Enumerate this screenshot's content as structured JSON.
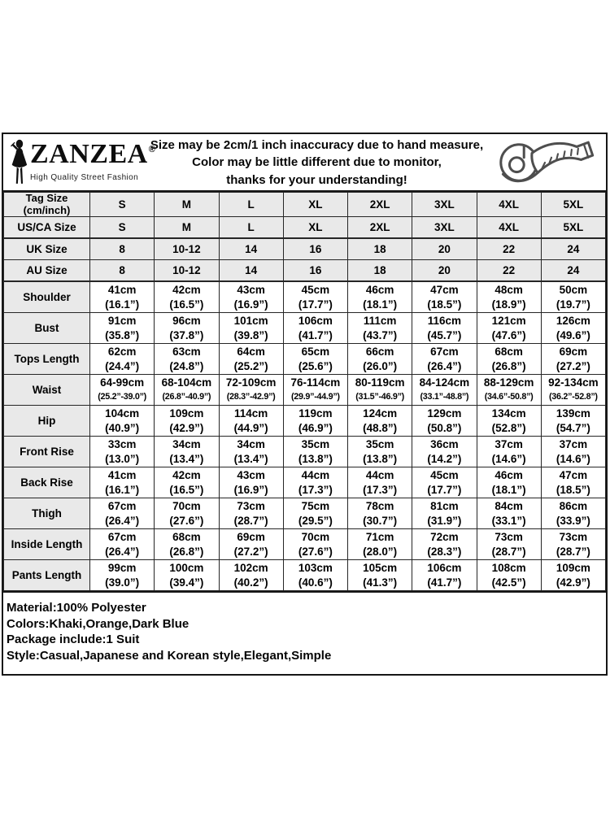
{
  "header": {
    "logo_icon": "woman-silhouette-icon",
    "brand_name": "ZANZEA",
    "registered_mark": "®",
    "brand_tagline": "High Quality Street Fashion",
    "disclaimer_line1": "Size may be 2cm/1 inch inaccuracy due to hand measure,",
    "disclaimer_line2": "Color may be little different due to monitor,",
    "disclaimer_line3": "thanks for your understanding!",
    "tape_icon": "measuring-tape-icon"
  },
  "table": {
    "size_rows": [
      {
        "label_line1": "Tag Size",
        "label_line2": "(cm/inch)",
        "values": [
          "S",
          "M",
          "L",
          "XL",
          "2XL",
          "3XL",
          "4XL",
          "5XL"
        ]
      },
      {
        "label_line1": "US/CA Size",
        "values": [
          "S",
          "M",
          "L",
          "XL",
          "2XL",
          "3XL",
          "4XL",
          "5XL"
        ]
      },
      {
        "label_line1": "UK Size",
        "values": [
          "8",
          "10-12",
          "14",
          "16",
          "18",
          "20",
          "22",
          "24"
        ]
      },
      {
        "label_line1": "AU Size",
        "values": [
          "8",
          "10-12",
          "14",
          "16",
          "18",
          "20",
          "22",
          "24"
        ]
      }
    ],
    "measurement_rows": [
      {
        "label": "Shoulder",
        "cells": [
          [
            "41cm",
            "(16.1”)"
          ],
          [
            "42cm",
            "(16.5”)"
          ],
          [
            "43cm",
            "(16.9”)"
          ],
          [
            "45cm",
            "(17.7”)"
          ],
          [
            "46cm",
            "(18.1”)"
          ],
          [
            "47cm",
            "(18.5”)"
          ],
          [
            "48cm",
            "(18.9”)"
          ],
          [
            "50cm",
            "(19.7”)"
          ]
        ]
      },
      {
        "label": "Bust",
        "cells": [
          [
            "91cm",
            "(35.8”)"
          ],
          [
            "96cm",
            "(37.8”)"
          ],
          [
            "101cm",
            "(39.8”)"
          ],
          [
            "106cm",
            "(41.7”)"
          ],
          [
            "111cm",
            "(43.7”)"
          ],
          [
            "116cm",
            "(45.7”)"
          ],
          [
            "121cm",
            "(47.6”)"
          ],
          [
            "126cm",
            "(49.6”)"
          ]
        ]
      },
      {
        "label": "Tops Length",
        "cells": [
          [
            "62cm",
            "(24.4”)"
          ],
          [
            "63cm",
            "(24.8”)"
          ],
          [
            "64cm",
            "(25.2”)"
          ],
          [
            "65cm",
            "(25.6”)"
          ],
          [
            "66cm",
            "(26.0”)"
          ],
          [
            "67cm",
            "(26.4”)"
          ],
          [
            "68cm",
            "(26.8”)"
          ],
          [
            "69cm",
            "(27.2”)"
          ]
        ]
      },
      {
        "label": "Waist",
        "cells": [
          [
            "64-99cm",
            "(25.2”-39.0”)"
          ],
          [
            "68-104cm",
            "(26.8”-40.9”)"
          ],
          [
            "72-109cm",
            "(28.3”-42.9”)"
          ],
          [
            "76-114cm",
            "(29.9”-44.9”)"
          ],
          [
            "80-119cm",
            "(31.5”-46.9”)"
          ],
          [
            "84-124cm",
            "(33.1”-48.8”)"
          ],
          [
            "88-129cm",
            "(34.6”-50.8”)"
          ],
          [
            "92-134cm",
            "(36.2”-52.8”)"
          ]
        ]
      },
      {
        "label": "Hip",
        "cells": [
          [
            "104cm",
            "(40.9”)"
          ],
          [
            "109cm",
            "(42.9”)"
          ],
          [
            "114cm",
            "(44.9”)"
          ],
          [
            "119cm",
            "(46.9”)"
          ],
          [
            "124cm",
            "(48.8”)"
          ],
          [
            "129cm",
            "(50.8”)"
          ],
          [
            "134cm",
            "(52.8”)"
          ],
          [
            "139cm",
            "(54.7”)"
          ]
        ]
      },
      {
        "label": "Front Rise",
        "cells": [
          [
            "33cm",
            "(13.0”)"
          ],
          [
            "34cm",
            "(13.4”)"
          ],
          [
            "34cm",
            "(13.4”)"
          ],
          [
            "35cm",
            "(13.8”)"
          ],
          [
            "35cm",
            "(13.8”)"
          ],
          [
            "36cm",
            "(14.2”)"
          ],
          [
            "37cm",
            "(14.6”)"
          ],
          [
            "37cm",
            "(14.6”)"
          ]
        ]
      },
      {
        "label": "Back Rise",
        "cells": [
          [
            "41cm",
            "(16.1”)"
          ],
          [
            "42cm",
            "(16.5”)"
          ],
          [
            "43cm",
            "(16.9”)"
          ],
          [
            "44cm",
            "(17.3”)"
          ],
          [
            "44cm",
            "(17.3”)"
          ],
          [
            "45cm",
            "(17.7”)"
          ],
          [
            "46cm",
            "(18.1”)"
          ],
          [
            "47cm",
            "(18.5”)"
          ]
        ]
      },
      {
        "label": "Thigh",
        "cells": [
          [
            "67cm",
            "(26.4”)"
          ],
          [
            "70cm",
            "(27.6”)"
          ],
          [
            "73cm",
            "(28.7”)"
          ],
          [
            "75cm",
            "(29.5”)"
          ],
          [
            "78cm",
            "(30.7”)"
          ],
          [
            "81cm",
            "(31.9”)"
          ],
          [
            "84cm",
            "(33.1”)"
          ],
          [
            "86cm",
            "(33.9”)"
          ]
        ]
      },
      {
        "label": "Inside Length",
        "cells": [
          [
            "67cm",
            "(26.4”)"
          ],
          [
            "68cm",
            "(26.8”)"
          ],
          [
            "69cm",
            "(27.2”)"
          ],
          [
            "70cm",
            "(27.6”)"
          ],
          [
            "71cm",
            "(28.0”)"
          ],
          [
            "72cm",
            "(28.3”)"
          ],
          [
            "73cm",
            "(28.7”)"
          ],
          [
            "73cm",
            "(28.7”)"
          ]
        ]
      },
      {
        "label": "Pants Length",
        "cells": [
          [
            "99cm",
            "(39.0”)"
          ],
          [
            "100cm",
            "(39.4”)"
          ],
          [
            "102cm",
            "(40.2”)"
          ],
          [
            "103cm",
            "(40.6”)"
          ],
          [
            "105cm",
            "(41.3”)"
          ],
          [
            "106cm",
            "(41.7”)"
          ],
          [
            "108cm",
            "(42.5”)"
          ],
          [
            "109cm",
            "(42.9”)"
          ]
        ]
      }
    ]
  },
  "footer": {
    "line1": "Material:100% Polyester",
    "line2": "Colors:Khaki,Orange,Dark Blue",
    "line3": "Package include:1 Suit",
    "line4": "Style:Casual,Japanese and Korean style,Elegant,Simple"
  },
  "colors": {
    "border": "#161616",
    "header_cell_bg": "#e9e9e9",
    "cell_bg": "#ffffff",
    "text": "#000000"
  }
}
